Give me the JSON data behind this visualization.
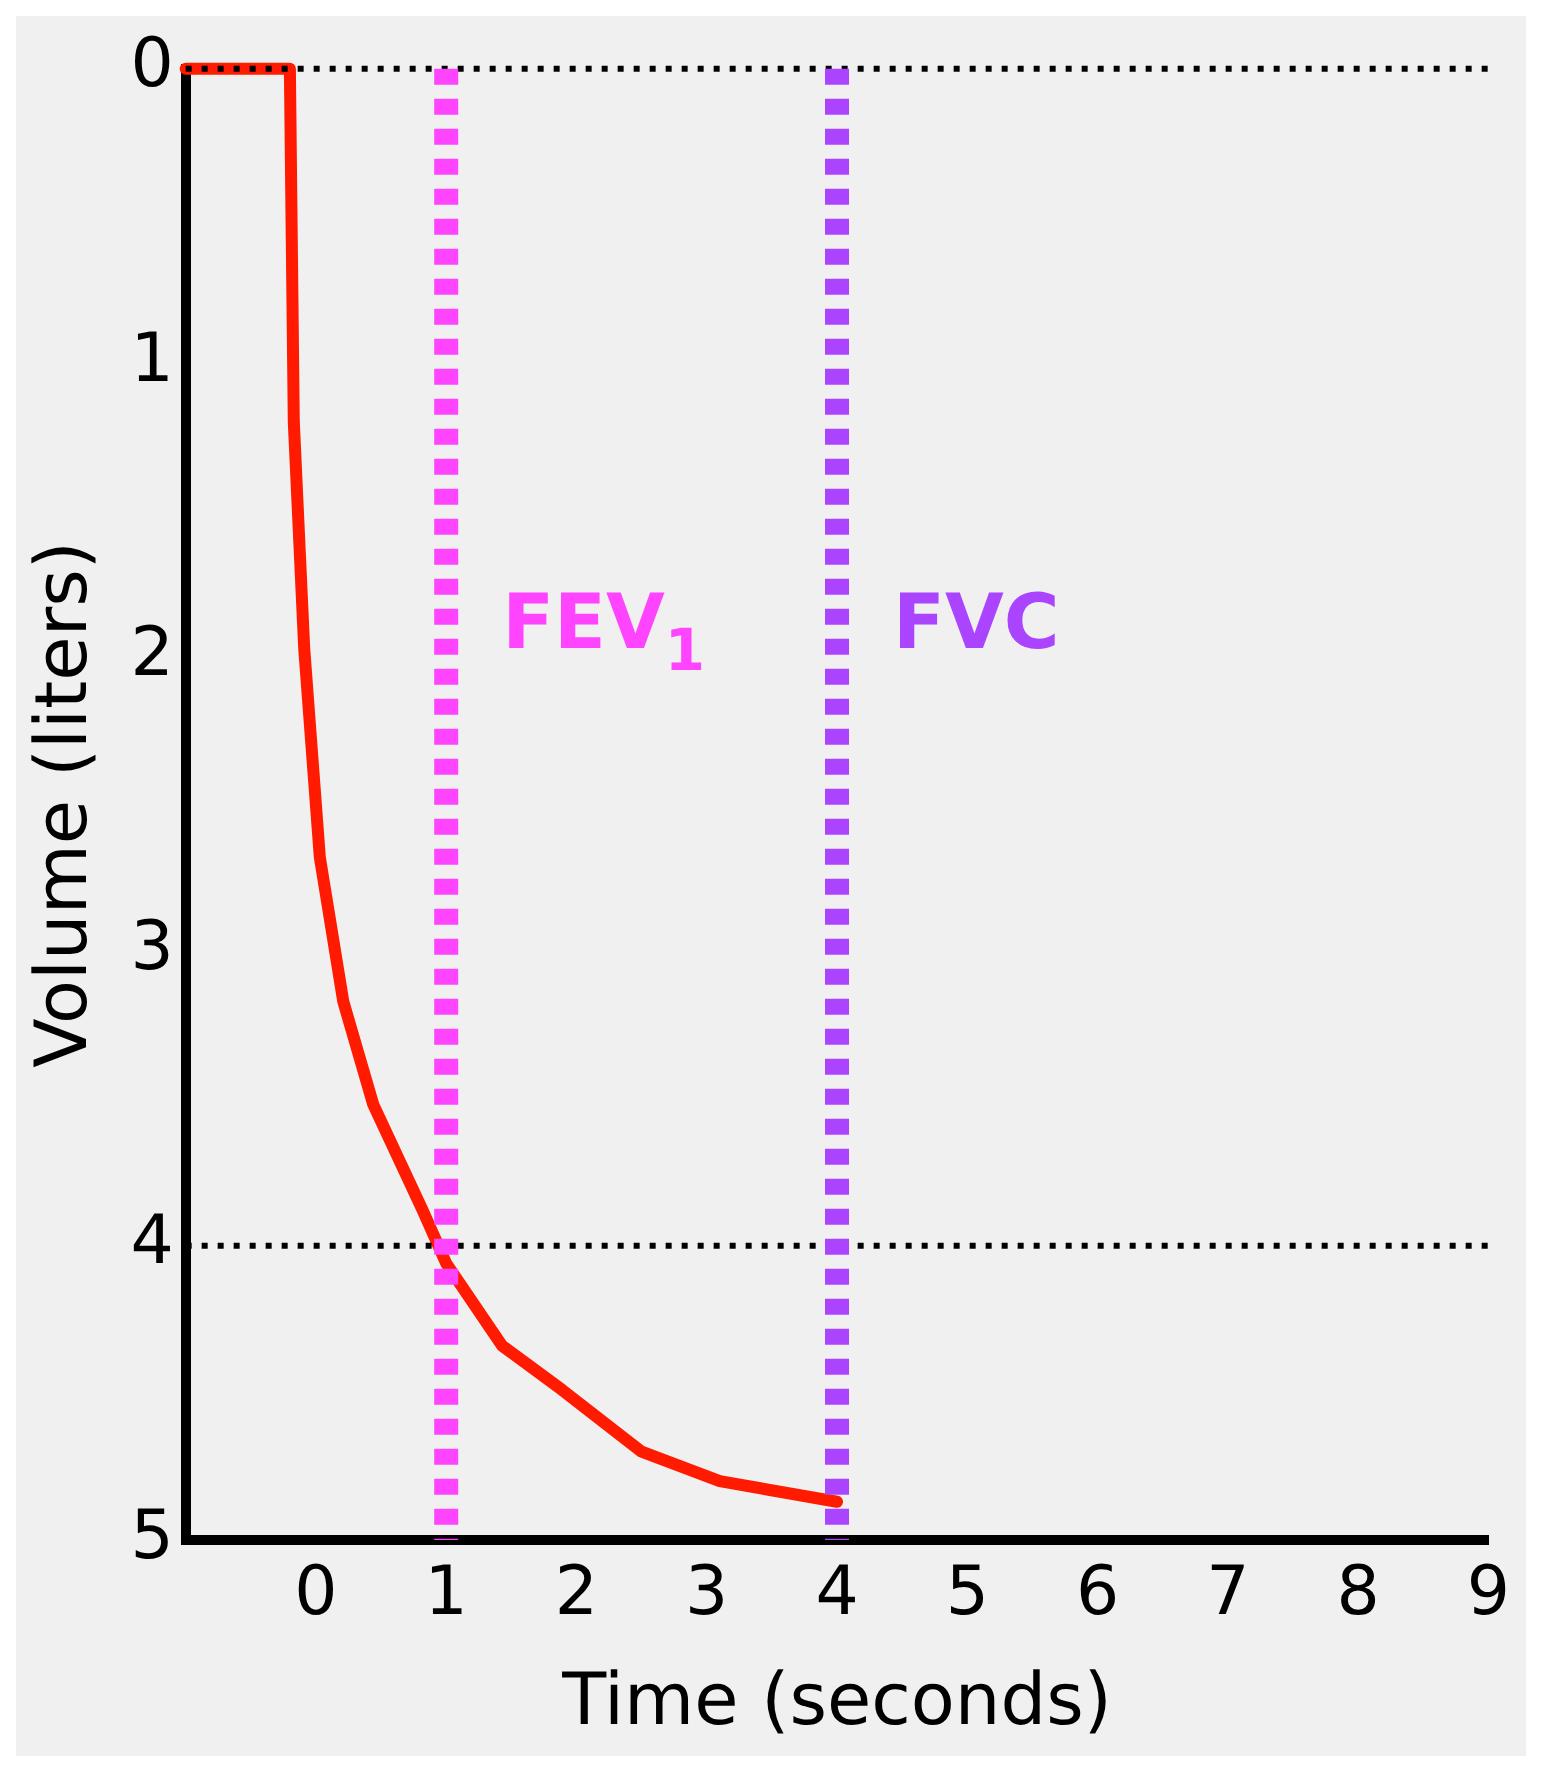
{
  "chart_data": {
    "type": "line",
    "xlabel": "Time (seconds)",
    "ylabel": "Volume (liters)",
    "series": [
      {
        "color": "#ff1a00",
        "x": [
          -1,
          -0.2,
          -0.17,
          -0.09,
          0.03,
          0.21,
          0.44,
          0.82,
          1.0,
          1.43,
          1.89,
          2.5,
          3.1,
          4.0
        ],
        "values": [
          0,
          0,
          1.2,
          1.97,
          2.68,
          3.17,
          3.52,
          3.88,
          4.06,
          4.34,
          4.49,
          4.7,
          4.8,
          4.87
        ]
      }
    ],
    "xlim": [
      -1,
      9
    ],
    "ylim": [
      5,
      0
    ],
    "xticks": [
      0,
      1,
      2,
      3,
      4,
      5,
      6,
      7,
      8,
      9
    ],
    "yticks": [
      0,
      1,
      2,
      3,
      4,
      5
    ],
    "ref_lines": [
      {
        "axis": "y",
        "value": 0,
        "color": "#000000",
        "line_style": "dotted"
      },
      {
        "axis": "y",
        "value": 4,
        "color": "#000000",
        "line_style": "dotted"
      },
      {
        "axis": "x",
        "value": 1,
        "label": "FEV$_{1}$",
        "color": "#ff44ff",
        "line_style": "dashed"
      },
      {
        "axis": "x",
        "value": 4,
        "label": "FVC",
        "color": "#aa44ff",
        "line_style": "dashed"
      }
    ],
    "grid": false,
    "legend": false,
    "marker": "none",
    "line_style": "solid"
  }
}
